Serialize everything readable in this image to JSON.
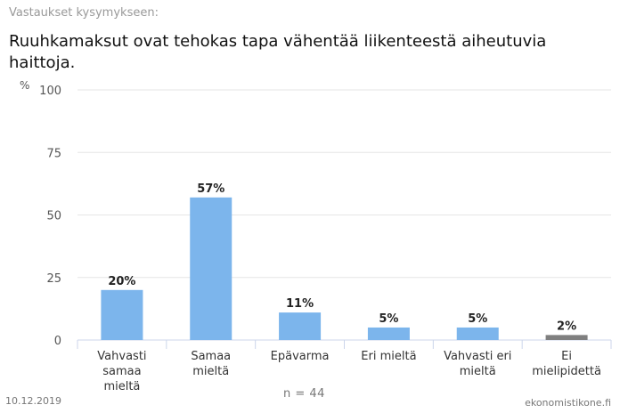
{
  "header": {
    "subtitle": "Vastaukset kysymykseen:",
    "title": "Ruuhkamaksut ovat tehokas tapa vähentää liikenteestä aiheutuvia haittoja."
  },
  "footer": {
    "date": "10.12.2019",
    "source": "ekonomistikone.fi",
    "n": "n = 44"
  },
  "colors": {
    "bar": "#7cb5ec",
    "bar_neutral": "#7f7f7f",
    "grid": "#e6e6e6"
  },
  "chart_data": {
    "type": "bar",
    "title": "Ruuhkamaksut ovat tehokas tapa vähentää liikenteestä aiheutuvia haittoja.",
    "ylabel": "%",
    "ylim": [
      0,
      100
    ],
    "yticks": [
      0,
      25,
      50,
      75,
      100
    ],
    "grid": true,
    "categories": [
      [
        "Vahvasti",
        "samaa",
        "mieltä"
      ],
      [
        "Samaa",
        "mieltä"
      ],
      [
        "Epävarma"
      ],
      [
        "Eri mieltä"
      ],
      [
        "Vahvasti eri",
        "mieltä"
      ],
      [
        "Ei",
        "mielipidettä"
      ]
    ],
    "values": [
      20,
      57,
      11,
      5,
      5,
      2
    ],
    "value_labels": [
      "20%",
      "57%",
      "11%",
      "5%",
      "5%",
      "2%"
    ]
  }
}
